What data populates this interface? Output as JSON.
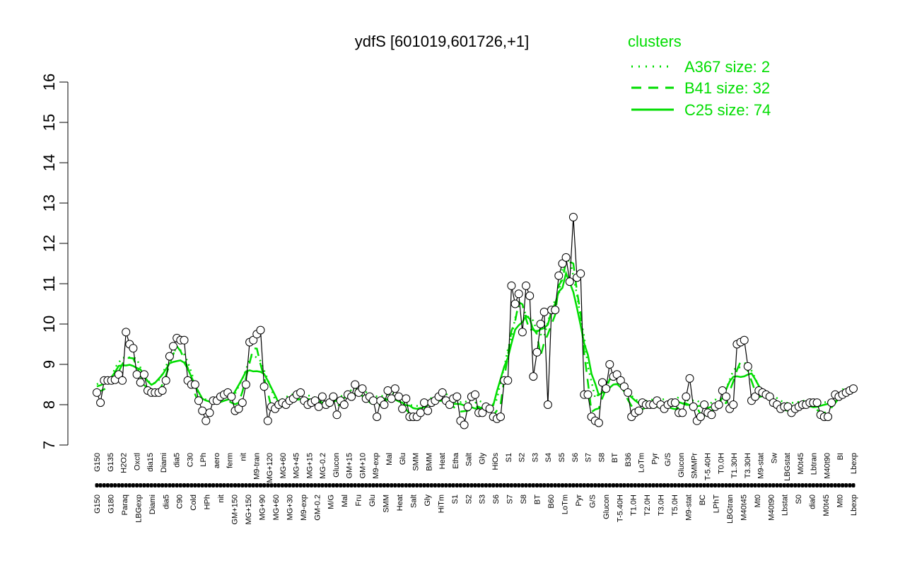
{
  "chart_data": {
    "type": "line",
    "title": "ydfS [601019,601726,+1]",
    "ylim": [
      7,
      16
    ],
    "yticks": [
      7,
      8,
      9,
      10,
      11,
      12,
      13,
      14,
      15,
      16
    ],
    "xlabels_upper": [
      "G150",
      "G135",
      "H2O2",
      "Oxctl",
      "dia15",
      "Diami",
      "dia5",
      "C30",
      "LPh",
      "aero",
      "ferm",
      "nit",
      "M9-tran",
      "MG+120",
      "MG+60",
      "MG+45",
      "MG+15",
      "MG-0.2",
      "Glucon",
      "GM+15",
      "GM+10",
      "M9-exp",
      "Mal",
      "Glu",
      "SMM",
      "BMM",
      "Heat",
      "Etha",
      "Salt",
      "Gly",
      "HiOs",
      "S1",
      "S2",
      "S3",
      "S4",
      "S5",
      "S6",
      "S7",
      "S8",
      "BT",
      "B36",
      "LoTm",
      "Pyr",
      "G/S",
      "Glucon",
      "SMMPr",
      "T-5.40H",
      "T0.0H",
      "T1.30H",
      "T3.30H",
      "M9-stat",
      "Sw",
      "LBGstat",
      "M0t45",
      "Lbtran",
      "M40t90",
      "BI",
      "Lbexp"
    ],
    "xlabels_lower": [
      "G150",
      "G180",
      "Paraq",
      "LBGexp",
      "Diami",
      "dia5",
      "C90",
      "Cold",
      "HPh",
      "nit",
      "GM+150",
      "MG+150",
      "MG+90",
      "MG+60",
      "MG+30",
      "M9-exp",
      "GM-0.2",
      "M/G",
      "Mal",
      "Fru",
      "Glu",
      "SMM",
      "Heat",
      "Salt",
      "Gly",
      "HiTm",
      "S1",
      "S2",
      "S3",
      "S6",
      "S7",
      "S8",
      "BT",
      "B60",
      "LoTm",
      "Pyr",
      "G/S",
      "Glucon",
      "T-5.40H",
      "T1.0H",
      "T2.0H",
      "T3.0H",
      "T5.0H",
      "M9-stat",
      "BC",
      "LPhT",
      "LBGtran",
      "M40t45",
      "Mt0",
      "M40t90",
      "Lbstat",
      "S0",
      "dia0",
      "M0t45",
      "Mt0",
      "Lbexp"
    ],
    "series": [
      {
        "name": "A367 size: 2",
        "line_style": "dotted",
        "color": "#00dd00"
      },
      {
        "name": "B41 size: 32",
        "line_style": "dashed",
        "color": "#00dd00"
      },
      {
        "name": "C25 size: 74",
        "line_style": "solid",
        "color": "#00dd00"
      }
    ],
    "data": {
      "y": [
        8.3,
        8.05,
        8.6,
        8.6,
        8.6,
        8.62,
        8.75,
        8.6,
        9.8,
        9.5,
        9.4,
        8.75,
        8.55,
        8.75,
        8.35,
        8.3,
        8.3,
        8.3,
        8.35,
        8.6,
        9.2,
        9.45,
        9.65,
        9.6,
        9.6,
        8.6,
        8.5,
        8.5,
        8.1,
        7.85,
        7.6,
        7.8,
        8.1,
        8.1,
        8.2,
        8.25,
        8.3,
        8.2,
        7.85,
        7.9,
        8.05,
        8.5,
        9.55,
        9.6,
        9.75,
        9.85,
        8.45,
        7.6,
        7.95,
        7.9,
        8.0,
        8.05,
        8.0,
        8.1,
        8.15,
        8.25,
        8.3,
        8.1,
        8.0,
        8.05,
        8.1,
        7.95,
        8.2,
        8.0,
        8.05,
        8.2,
        7.75,
        8.1,
        8.0,
        8.25,
        8.2,
        8.5,
        8.3,
        8.4,
        8.15,
        8.2,
        8.1,
        7.7,
        8.1,
        8.0,
        8.35,
        8.15,
        8.4,
        8.2,
        7.9,
        8.15,
        7.7,
        7.7,
        7.7,
        7.8,
        8.05,
        7.85,
        8.05,
        8.1,
        8.2,
        8.3,
        8.1,
        8.0,
        8.15,
        8.2,
        7.6,
        7.5,
        7.95,
        8.2,
        8.25,
        7.8,
        7.8,
        7.95,
        7.9,
        7.7,
        7.65,
        7.7,
        8.6,
        8.6,
        10.95,
        10.5,
        10.75,
        9.8,
        10.95,
        10.7,
        8.7,
        9.3,
        10.0,
        10.3,
        8.0,
        10.35,
        10.35,
        11.2,
        11.5,
        11.65,
        11.05,
        12.65,
        11.15,
        11.25,
        8.25,
        8.25,
        7.7,
        7.6,
        7.55,
        8.55,
        8.4,
        9.0,
        8.7,
        8.75,
        8.6,
        8.45,
        8.3,
        7.7,
        7.8,
        7.85,
        8.05,
        8.0,
        8.0,
        8.0,
        8.1,
        8.0,
        7.9,
        8.0,
        8.05,
        8.05,
        7.8,
        7.8,
        8.2,
        8.65,
        7.95,
        7.6,
        7.7,
        8.0,
        7.8,
        7.75,
        7.95,
        8.0,
        8.35,
        8.2,
        7.9,
        8.0,
        9.5,
        9.55,
        9.6,
        8.95,
        8.1,
        8.2,
        8.35,
        8.3,
        8.25,
        8.2,
        8.05,
        8.0,
        7.9,
        7.95,
        7.95,
        7.8,
        7.9,
        7.95,
        8.0,
        8.0,
        8.05,
        8.05,
        8.05,
        7.75,
        7.7,
        7.7,
        8.05,
        8.25,
        8.2,
        8.25,
        8.3,
        8.35,
        8.4
      ]
    }
  }
}
